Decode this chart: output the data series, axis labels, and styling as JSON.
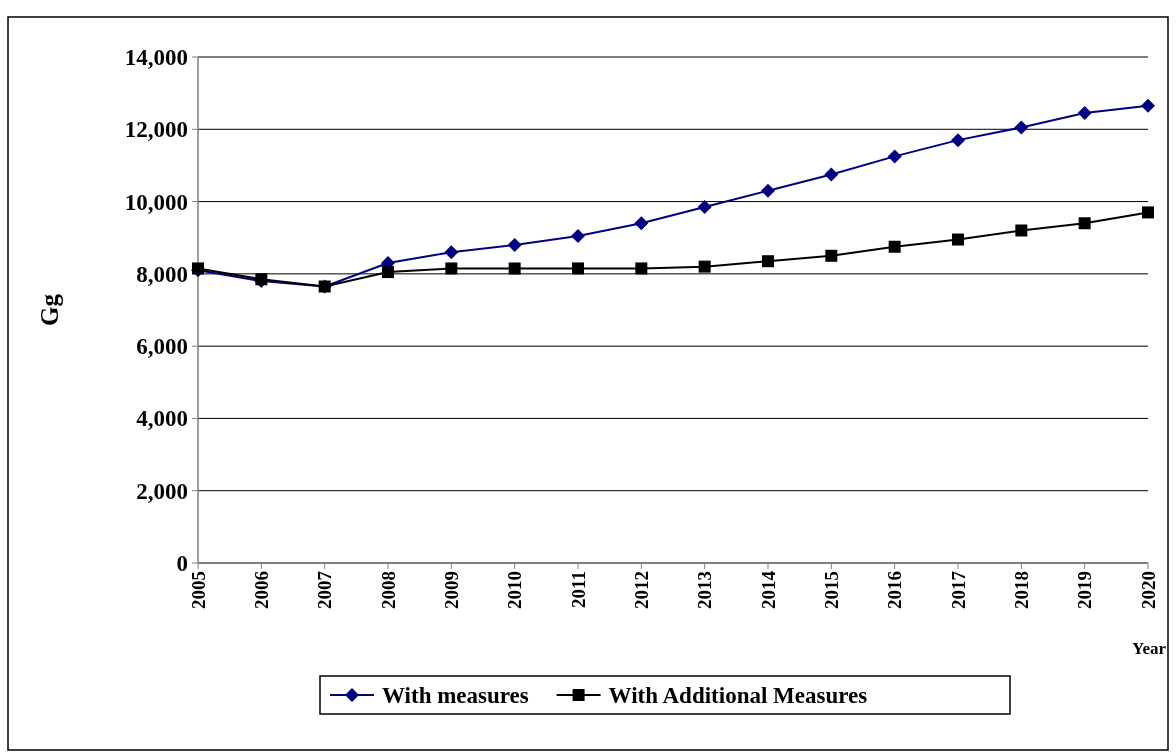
{
  "chart_data": {
    "type": "line",
    "xlabel": "Year",
    "ylabel": "Gg",
    "categories": [
      "2005",
      "2006",
      "2007",
      "2008",
      "2009",
      "2010",
      "2011",
      "2012",
      "2013",
      "2014",
      "2015",
      "2016",
      "2017",
      "2018",
      "2019",
      "2020"
    ],
    "series": [
      {
        "name": "With measures",
        "color": "#000080",
        "marker": "diamond",
        "values": [
          8100,
          7800,
          7650,
          8300,
          8600,
          8800,
          9050,
          9400,
          9850,
          10300,
          10750,
          11250,
          11700,
          12050,
          12450,
          12650
        ]
      },
      {
        "name": "With Additional Measures",
        "color": "#000000",
        "marker": "square",
        "values": [
          8150,
          7850,
          7650,
          8050,
          8150,
          8150,
          8150,
          8150,
          8200,
          8350,
          8500,
          8750,
          8950,
          9200,
          9400,
          9700
        ]
      }
    ],
    "ylim": [
      0,
      14000
    ],
    "yticks": [
      {
        "value": 0,
        "label": "0"
      },
      {
        "value": 2000,
        "label": "2,000"
      },
      {
        "value": 4000,
        "label": "4,000"
      },
      {
        "value": 6000,
        "label": "6,000"
      },
      {
        "value": 8000,
        "label": "8,000"
      },
      {
        "value": 10000,
        "label": "10,000"
      },
      {
        "value": 12000,
        "label": "12,000"
      },
      {
        "value": 14000,
        "label": "14,000"
      }
    ],
    "grid": "y",
    "legend": "bottom"
  }
}
